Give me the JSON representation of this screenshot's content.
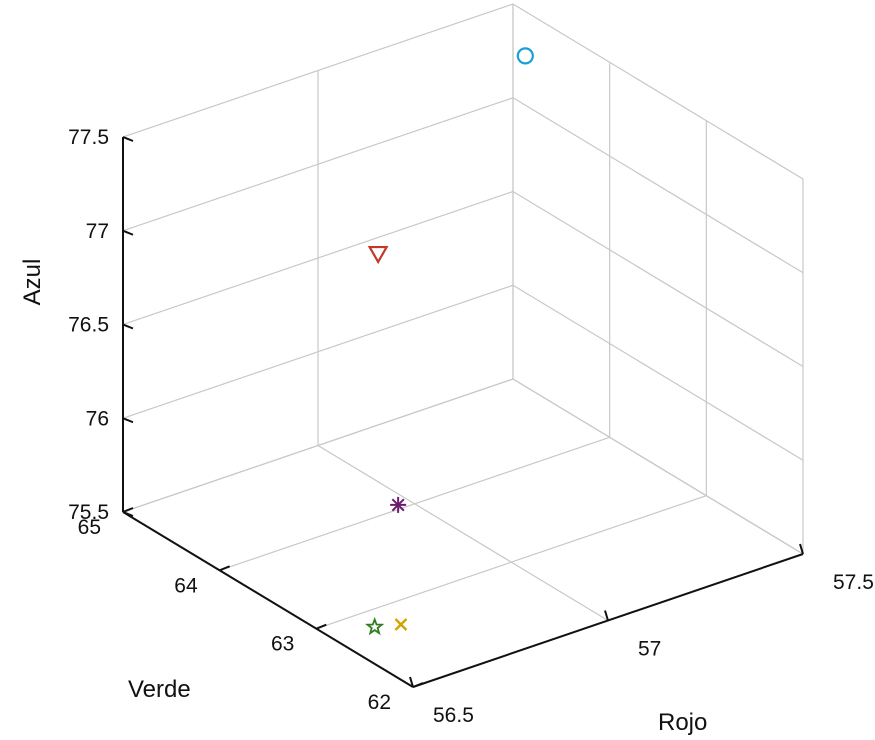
{
  "chart_data": {
    "type": "scatter",
    "axes": {
      "x": {
        "label": "Rojo",
        "lim": [
          56.5,
          57.5
        ],
        "ticks": [
          "56.5",
          "57",
          "57.5"
        ]
      },
      "y": {
        "label": "Verde",
        "lim": [
          62,
          65
        ],
        "ticks": [
          "62",
          "63",
          "64",
          "65"
        ]
      },
      "z": {
        "label": "Azul",
        "lim": [
          75.5,
          77.5
        ],
        "ticks": [
          "75.5",
          "76",
          "76.5",
          "77",
          "77.5"
        ]
      }
    },
    "grid": true,
    "points": [
      {
        "marker": "circle",
        "color": "#1a9fd6",
        "rojo": 57.42,
        "verde": 64.55,
        "azul": 77.42
      },
      {
        "marker": "triangle-down",
        "color": "#c0392b",
        "rojo": 57.06,
        "verde": 64.62,
        "azul": 76.6
      },
      {
        "marker": "asterisk",
        "color": "#6a1b6e",
        "rojo": 56.97,
        "verde": 64.05,
        "azul": 75.5
      },
      {
        "marker": "pentagram",
        "color": "#2e7d1e",
        "rojo": 56.6,
        "verde": 62.8,
        "azul": 75.5
      },
      {
        "marker": "x",
        "color": "#d4a300",
        "rojo": 56.65,
        "verde": 62.73,
        "azul": 75.5
      }
    ]
  }
}
